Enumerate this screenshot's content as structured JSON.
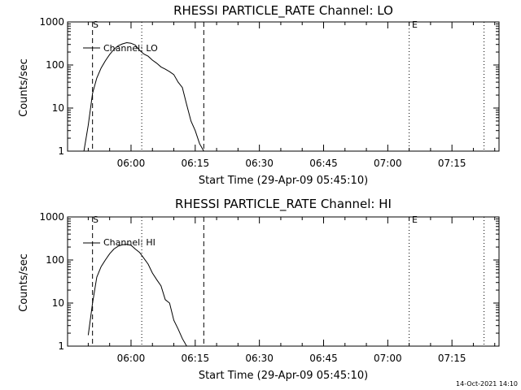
{
  "footer": {
    "timestamp": "14-Oct-2021 14:10"
  },
  "chart_data": [
    {
      "type": "line",
      "title": "RHESSI PARTICLE_RATE Channel: LO",
      "xlabel": "Start Time (29-Apr-09 05:45:10)",
      "ylabel": "Counts/sec",
      "yscale": "log",
      "ylim": [
        1,
        1000
      ],
      "xlim": [
        "05:45:10",
        "07:26:00"
      ],
      "xticks": [
        "06:00",
        "06:15",
        "06:30",
        "06:45",
        "07:00",
        "07:15"
      ],
      "yticks": [
        "1",
        "10",
        "100",
        "1000"
      ],
      "legend": {
        "entry": "Channel: LO",
        "placement": "top-left"
      },
      "markers": {
        "start": "S",
        "end": "E"
      },
      "vlines": [
        {
          "time": "05:51:00",
          "style": "dashed"
        },
        {
          "time": "06:02:30",
          "style": "dotted"
        },
        {
          "time": "06:17:00",
          "style": "dashed"
        },
        {
          "time": "07:05:00",
          "style": "dotted"
        },
        {
          "time": "07:22:30",
          "style": "dotted"
        }
      ],
      "series": [
        {
          "x": [
            "05:49:00",
            "05:50:00",
            "05:51:00",
            "05:52:00",
            "05:53:00",
            "05:54:00",
            "05:55:00",
            "05:56:00",
            "05:57:00",
            "05:58:00",
            "05:59:00",
            "06:00:00",
            "06:01:00",
            "06:02:00",
            "06:03:00",
            "06:04:00",
            "06:05:00",
            "06:06:00",
            "06:07:00",
            "06:08:00",
            "06:09:00",
            "06:10:00",
            "06:11:00",
            "06:12:00",
            "06:13:00",
            "06:14:00",
            "06:15:00",
            "06:16:00",
            "06:17:00"
          ],
          "y": [
            1,
            4,
            22,
            50,
            85,
            125,
            175,
            230,
            280,
            310,
            330,
            320,
            290,
            220,
            180,
            160,
            130,
            110,
            90,
            80,
            70,
            60,
            40,
            30,
            12,
            5,
            3,
            1.5,
            1
          ]
        }
      ]
    },
    {
      "type": "line",
      "title": "RHESSI PARTICLE_RATE Channel: HI",
      "xlabel": "Start Time (29-Apr-09 05:45:10)",
      "ylabel": "Counts/sec",
      "yscale": "log",
      "ylim": [
        1,
        1000
      ],
      "xlim": [
        "05:45:10",
        "07:26:00"
      ],
      "xticks": [
        "06:00",
        "06:15",
        "06:30",
        "06:45",
        "07:00",
        "07:15"
      ],
      "yticks": [
        "1",
        "10",
        "100",
        "1000"
      ],
      "legend": {
        "entry": "Channel: HI",
        "placement": "top-left"
      },
      "markers": {
        "start": "S",
        "end": "E"
      },
      "vlines": [
        {
          "time": "05:51:00",
          "style": "dashed"
        },
        {
          "time": "06:02:30",
          "style": "dotted"
        },
        {
          "time": "06:17:00",
          "style": "dashed"
        },
        {
          "time": "07:05:00",
          "style": "dotted"
        },
        {
          "time": "07:22:30",
          "style": "dotted"
        }
      ],
      "series": [
        {
          "x": [
            "05:50:00",
            "05:51:00",
            "05:52:00",
            "05:53:00",
            "05:54:00",
            "05:55:00",
            "05:56:00",
            "05:57:00",
            "05:58:00",
            "05:59:00",
            "06:00:00",
            "06:01:00",
            "06:02:00",
            "06:03:00",
            "06:04:00",
            "06:05:00",
            "06:06:00",
            "06:07:00",
            "06:08:00",
            "06:09:00",
            "06:10:00",
            "06:11:00",
            "06:12:00",
            "06:13:00"
          ],
          "y": [
            1.8,
            10,
            40,
            70,
            100,
            140,
            180,
            210,
            225,
            230,
            220,
            180,
            150,
            110,
            80,
            50,
            35,
            25,
            12,
            10,
            4,
            2.5,
            1.5,
            1
          ]
        }
      ]
    }
  ]
}
